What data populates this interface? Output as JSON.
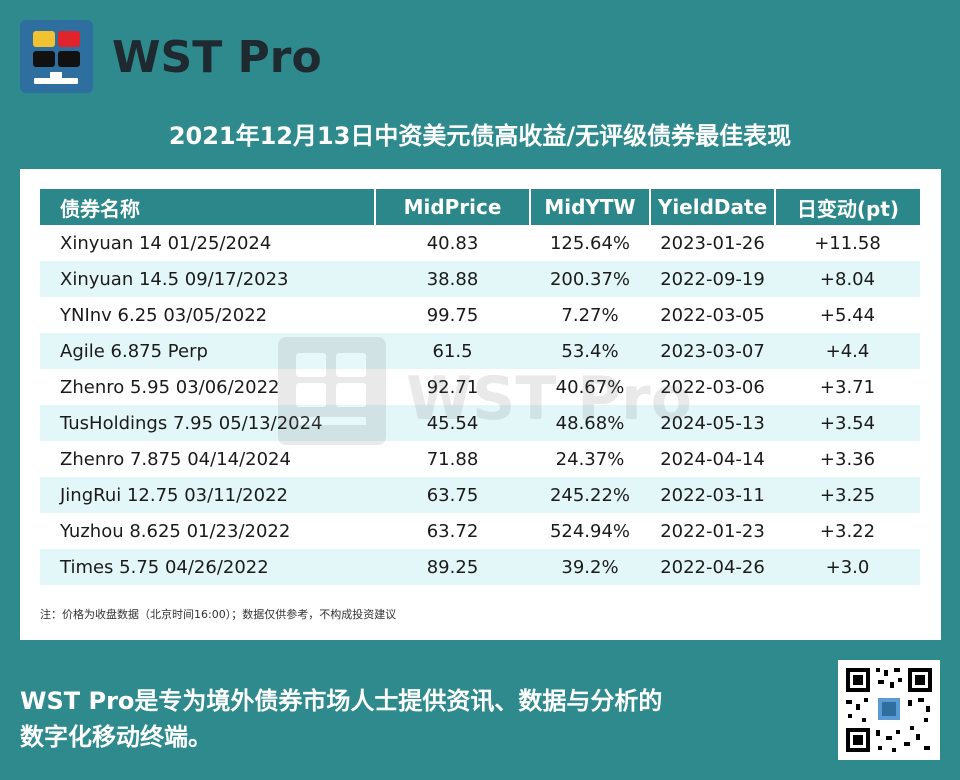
{
  "brand": {
    "name": "WST Pro",
    "logo_colors": {
      "top_left": "#f1c232",
      "top_right": "#e0242c",
      "bottom": "#111111",
      "box": "#2e6fa0"
    }
  },
  "title": "2021年12月13日中资美元债高收益/无评级债券最佳表现",
  "table": {
    "headers": [
      "债券名称",
      "MidPrice",
      "MidYTW",
      "YieldDate",
      "日变动(pt)"
    ],
    "rows": [
      [
        "Xinyuan 14 01/25/2024",
        "40.83",
        "125.64%",
        "2023-01-26",
        "+11.58"
      ],
      [
        "Xinyuan 14.5 09/17/2023",
        "38.88",
        "200.37%",
        "2022-09-19",
        "+8.04"
      ],
      [
        "YNInv 6.25 03/05/2022",
        "99.75",
        "7.27%",
        "2022-03-05",
        "+5.44"
      ],
      [
        "Agile 6.875 Perp",
        "61.5",
        "53.4%",
        "2023-03-07",
        "+4.4"
      ],
      [
        "Zhenro 5.95 03/06/2022",
        "92.71",
        "40.67%",
        "2022-03-06",
        "+3.71"
      ],
      [
        "TusHoldings 7.95 05/13/2024",
        "45.54",
        "48.68%",
        "2024-05-13",
        "+3.54"
      ],
      [
        "Zhenro 7.875 04/14/2024",
        "71.88",
        "24.37%",
        "2024-04-14",
        "+3.36"
      ],
      [
        "JingRui 12.75 03/11/2022",
        "63.75",
        "245.22%",
        "2022-03-11",
        "+3.25"
      ],
      [
        "Yuzhou 8.625 01/23/2022",
        "63.72",
        "524.94%",
        "2022-01-23",
        "+3.22"
      ],
      [
        "Times 5.75 04/26/2022",
        "89.25",
        "39.2%",
        "2022-04-26",
        "+3.0"
      ]
    ]
  },
  "note": "注：价格为收盘数据（北京时间16:00）；数据仅供参考，不构成投资建议",
  "footer": {
    "line1": "WST Pro是专为境外债券市场人士提供资讯、数据与分析的",
    "line2": "数字化移动终端。"
  },
  "colors": {
    "background": "#2e8a8c",
    "header": "#2b8789",
    "row_alt": "#e3f7f9"
  }
}
